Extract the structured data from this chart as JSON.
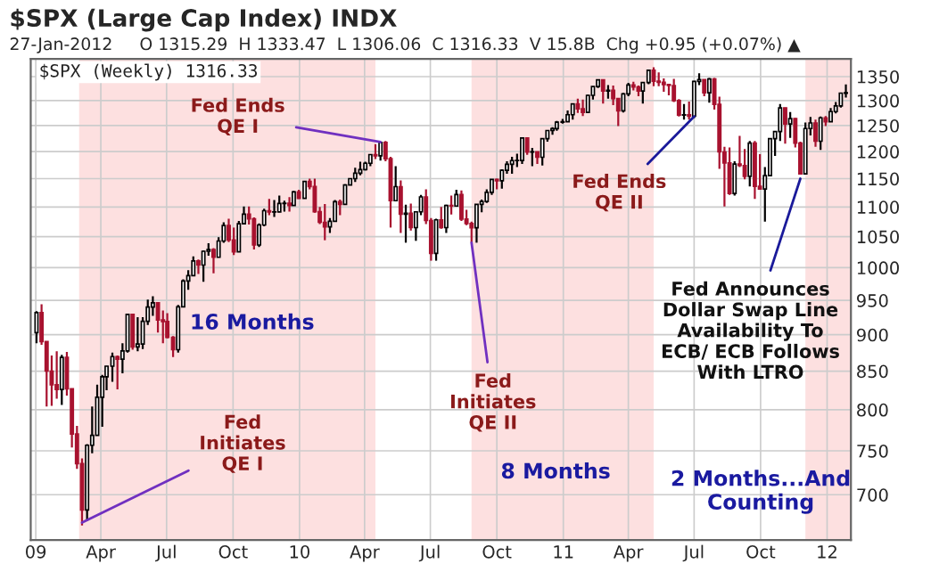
{
  "chart_data": {
    "type": "candlestick",
    "title": "$SPX (Large Cap Index) INDX",
    "subtitle": "27-Jan-2012     O 1315.29  H 1333.47  L 1306.06  C 1316.33  V 15.8B  Chg +0.95 (+0.07%) ▲",
    "series": [
      {
        "color": "#000000",
        "x": [
          "2009-01-02",
          "2009-02-06",
          "2009-03-13",
          "2009-03-20",
          "2009-03-27",
          "2009-04-03",
          "2009-04-09",
          "2009-04-17",
          "2009-05-01",
          "2009-05-08",
          "2009-05-22",
          "2009-05-29",
          "2009-06-05",
          "2009-06-12",
          "2009-07-17",
          "2009-07-24",
          "2009-07-31",
          "2009-08-07",
          "2009-08-21",
          "2009-08-28",
          "2009-09-11",
          "2009-09-18",
          "2009-10-09",
          "2009-10-16",
          "2009-11-06",
          "2009-11-13",
          "2009-11-27",
          "2009-12-04",
          "2009-12-11",
          "2009-12-24",
          "2010-01-08",
          "2010-02-12",
          "2010-02-19",
          "2010-03-05",
          "2010-03-12",
          "2010-03-19",
          "2010-03-26",
          "2010-04-02",
          "2010-04-09",
          "2010-04-23",
          "2010-05-14",
          "2010-05-28",
          "2010-06-11",
          "2010-06-18",
          "2010-07-09",
          "2010-07-23",
          "2010-08-06",
          "2010-09-03",
          "2010-09-10",
          "2010-09-17",
          "2010-09-24",
          "2010-10-08",
          "2010-10-15",
          "2010-10-22",
          "2010-10-29",
          "2010-11-05",
          "2010-11-19",
          "2010-12-03",
          "2010-12-10",
          "2010-12-17",
          "2010-12-23",
          "2010-12-31",
          "2011-01-07",
          "2011-01-14",
          "2011-02-04",
          "2011-02-11",
          "2011-02-18",
          "2011-03-04",
          "2011-03-25",
          "2011-04-01",
          "2011-04-21",
          "2011-04-29",
          "2011-06-17",
          "2011-07-01",
          "2011-07-08",
          "2011-07-22",
          "2011-08-26",
          "2011-09-16",
          "2011-10-07",
          "2011-10-14",
          "2011-10-21",
          "2011-10-28",
          "2011-11-11",
          "2011-12-02",
          "2011-12-09",
          "2011-12-23",
          "2012-01-06",
          "2012-01-13",
          "2012-01-20",
          "2012-01-27"
        ],
        "ohlc": [
          [
            903,
            934,
            888,
            931.8
          ],
          [
            825.9,
            872,
            806,
            868.6
          ],
          [
            683.4,
            758,
            672,
            756.6
          ],
          [
            756.6,
            804,
            747,
            768.5
          ],
          [
            768.5,
            832,
            768,
            815.9
          ],
          [
            815.9,
            845,
            779,
            842.5
          ],
          [
            842.5,
            857,
            825,
            856.6
          ],
          [
            856.6,
            875,
            836,
            869.6
          ],
          [
            866.2,
            888,
            847,
            877.5
          ],
          [
            877.5,
            930,
            875,
            929.2
          ],
          [
            882.9,
            925,
            877,
            887.0
          ],
          [
            887,
            925,
            880,
            919.1
          ],
          [
            919.1,
            951,
            914,
            940.1
          ],
          [
            940.1,
            956,
            927,
            946.2
          ],
          [
            879.1,
            943,
            875,
            940.4
          ],
          [
            940.4,
            982,
            940,
            979.3
          ],
          [
            979.3,
            996,
            966,
            987.5
          ],
          [
            987.5,
            1018,
            987,
            1010.5
          ],
          [
            1004.1,
            1027,
            978,
            1026.1
          ],
          [
            1026.1,
            1039,
            1019,
            1028.9
          ],
          [
            1016.4,
            1049,
            1016,
            1042.7
          ],
          [
            1042.7,
            1074,
            1040,
            1068.3
          ],
          [
            1025.2,
            1076,
            1025,
            1071.5
          ],
          [
            1071.5,
            1101,
            1071,
            1087.7
          ],
          [
            1036.2,
            1072,
            1033,
            1069.3
          ],
          [
            1069.3,
            1097,
            1067,
            1093.5
          ],
          [
            1091.4,
            1112,
            1083,
            1091.5
          ],
          [
            1091.5,
            1120,
            1091,
            1106
          ],
          [
            1106,
            1111,
            1092,
            1106.4
          ],
          [
            1102.5,
            1128,
            1102,
            1126.5
          ],
          [
            1115.1,
            1146,
            1115,
            1145
          ],
          [
            1066.2,
            1081,
            1056,
            1075.5
          ],
          [
            1075.5,
            1112,
            1075,
            1109.2
          ],
          [
            1104.5,
            1140,
            1104,
            1138.7
          ],
          [
            1138.7,
            1151,
            1138,
            1150
          ],
          [
            1150,
            1170,
            1144,
            1159.9
          ],
          [
            1159.9,
            1181,
            1156,
            1166.6
          ],
          [
            1166.6,
            1181,
            1165,
            1178.1
          ],
          [
            1178.1,
            1195,
            1173,
            1194.4
          ],
          [
            1192.1,
            1218,
            1183,
            1217.3
          ],
          [
            1110.9,
            1173,
            1110,
            1135.7
          ],
          [
            1087.7,
            1104,
            1040,
            1089.4
          ],
          [
            1064.9,
            1092,
            1043,
            1091.6
          ],
          [
            1091.6,
            1121,
            1086,
            1117.5
          ],
          [
            1022.6,
            1080,
            1011,
            1078
          ],
          [
            1064.9,
            1104,
            1056,
            1102.7
          ],
          [
            1101.6,
            1130,
            1101,
            1121.6
          ],
          [
            1064.6,
            1105,
            1040,
            1104.5
          ],
          [
            1104.5,
            1113,
            1091,
            1109.6
          ],
          [
            1109.6,
            1131,
            1107,
            1125.6
          ],
          [
            1125.6,
            1149,
            1121,
            1148.7
          ],
          [
            1146.2,
            1167,
            1132,
            1165.2
          ],
          [
            1165.2,
            1182,
            1159,
            1176.2
          ],
          [
            1176.2,
            1190,
            1159,
            1183.1
          ],
          [
            1183.1,
            1196,
            1171,
            1183.3
          ],
          [
            1183.3,
            1227,
            1177,
            1225.9
          ],
          [
            1199.2,
            1207,
            1173,
            1199.7
          ],
          [
            1189.4,
            1225,
            1174,
            1224.7
          ],
          [
            1224.7,
            1241,
            1219,
            1240.4
          ],
          [
            1240.4,
            1247,
            1232,
            1243.9
          ],
          [
            1243.9,
            1259,
            1240,
            1256.8
          ],
          [
            1256.8,
            1263,
            1254,
            1257.6
          ],
          [
            1257.6,
            1280,
            1257,
            1271.5
          ],
          [
            1271.5,
            1294,
            1262,
            1293.2
          ],
          [
            1276.3,
            1312,
            1276,
            1310.9
          ],
          [
            1310.9,
            1330,
            1302,
            1329.2
          ],
          [
            1329.2,
            1344,
            1326,
            1343
          ],
          [
            1319.9,
            1332,
            1304,
            1321.2
          ],
          [
            1279.2,
            1316,
            1276,
            1313.8
          ],
          [
            1313.8,
            1337,
            1309,
            1332.4
          ],
          [
            1319.7,
            1338,
            1294,
            1337.4
          ],
          [
            1337.4,
            1364,
            1334,
            1363.6
          ],
          [
            1271,
            1293,
            1262,
            1271.5
          ],
          [
            1268.5,
            1341,
            1265,
            1339.7
          ],
          [
            1339.7,
            1357,
            1332,
            1343.8
          ],
          [
            1316.1,
            1347,
            1296,
            1345
          ],
          [
            1123.5,
            1182,
            1120,
            1176.8
          ],
          [
            1154.2,
            1220,
            1136,
            1216
          ],
          [
            1131.4,
            1171,
            1075,
            1155.5
          ],
          [
            1155.5,
            1225,
            1155,
            1224.6
          ],
          [
            1224.6,
            1239,
            1192,
            1238.3
          ],
          [
            1238.3,
            1293,
            1220,
            1285.1
          ],
          [
            1253.2,
            1277,
            1226,
            1263.9
          ],
          [
            1158.7,
            1256,
            1158,
            1244.3
          ],
          [
            1244.3,
            1267,
            1231,
            1255.2
          ],
          [
            1219.7,
            1268,
            1203,
            1265.3
          ],
          [
            1257.6,
            1285,
            1257,
            1277.8
          ],
          [
            1277.8,
            1297,
            1274,
            1289.1
          ],
          [
            1289.1,
            1316,
            1286,
            1315.4
          ],
          [
            1315.29,
            1333.47,
            1306.06,
            1316.33
          ]
        ]
      },
      {
        "color": "#a8122f",
        "x": [
          "2009-01-09",
          "2009-01-16",
          "2009-01-23",
          "2009-01-30",
          "2009-02-13",
          "2009-02-20",
          "2009-02-27",
          "2009-03-06",
          "2009-04-24",
          "2009-05-15",
          "2009-06-19",
          "2009-06-26",
          "2009-07-02",
          "2009-07-10",
          "2009-08-14",
          "2009-09-04",
          "2009-09-25",
          "2009-10-02",
          "2009-10-23",
          "2009-10-30",
          "2009-11-20",
          "2009-12-18",
          "2009-12-31",
          "2010-01-15",
          "2010-01-22",
          "2010-01-29",
          "2010-02-05",
          "2010-02-26",
          "2010-04-16",
          "2010-04-30",
          "2010-05-07",
          "2010-05-21",
          "2010-06-04",
          "2010-06-25",
          "2010-07-02",
          "2010-07-16",
          "2010-07-30",
          "2010-08-13",
          "2010-08-20",
          "2010-08-27",
          "2010-10-01",
          "2010-11-12",
          "2010-11-26",
          "2011-01-21",
          "2011-01-28",
          "2011-02-25",
          "2011-03-11",
          "2011-03-18",
          "2011-04-08",
          "2011-04-15",
          "2011-05-06",
          "2011-05-13",
          "2011-05-20",
          "2011-05-27",
          "2011-06-03",
          "2011-06-10",
          "2011-06-24",
          "2011-07-15",
          "2011-07-29",
          "2011-08-05",
          "2011-08-12",
          "2011-08-19",
          "2011-09-02",
          "2011-09-09",
          "2011-09-23",
          "2011-09-30",
          "2011-11-04",
          "2011-11-18",
          "2011-11-25",
          "2011-12-16",
          "2011-12-30"
        ],
        "ohlc": [
          [
            931.8,
            944,
            886,
            890.4
          ],
          [
            890.4,
            891,
            804,
            850.1
          ],
          [
            850.1,
            871,
            805,
            831.95
          ],
          [
            832,
            877,
            814,
            825.9
          ],
          [
            868.6,
            876,
            818,
            826.8
          ],
          [
            826.8,
            827,
            754,
            770.05
          ],
          [
            770,
            780,
            729,
            735.1
          ],
          [
            735.1,
            741,
            667,
            683.4
          ],
          [
            869.6,
            871,
            826,
            866.2
          ],
          [
            929.2,
            930,
            879,
            882.9
          ],
          [
            946.2,
            947,
            903,
            921.2
          ],
          [
            921.2,
            935,
            888,
            918.9
          ],
          [
            918.9,
            931,
            895,
            896.4
          ],
          [
            896.4,
            898,
            869,
            879.1
          ],
          [
            1010.5,
            1013,
            990,
            1004.1
          ],
          [
            1028.9,
            1031,
            991,
            1016.4
          ],
          [
            1068.3,
            1080,
            1041,
            1044.4
          ],
          [
            1044.4,
            1065,
            1020,
            1025.2
          ],
          [
            1087.7,
            1101,
            1070,
            1079.6
          ],
          [
            1079.6,
            1082,
            1029,
            1036.2
          ],
          [
            1093.5,
            1114,
            1086,
            1091.4
          ],
          [
            1106.4,
            1117,
            1092,
            1102.5
          ],
          [
            1126.5,
            1130,
            1114,
            1115.1
          ],
          [
            1145,
            1150,
            1131,
            1136
          ],
          [
            1136,
            1150,
            1090,
            1091.8
          ],
          [
            1091.8,
            1100,
            1071,
            1073.9
          ],
          [
            1073.9,
            1105,
            1044,
            1066.2
          ],
          [
            1109.2,
            1113,
            1086,
            1104.5
          ],
          [
            1194.4,
            1214,
            1186,
            1192.1
          ],
          [
            1217.3,
            1220,
            1182,
            1186.7
          ],
          [
            1186.7,
            1190,
            1065,
            1110.9
          ],
          [
            1135.7,
            1147,
            1056,
            1087.7
          ],
          [
            1089.4,
            1106,
            1060,
            1064.9
          ],
          [
            1117.5,
            1131,
            1071,
            1076.8
          ],
          [
            1076.8,
            1081,
            1011,
            1022.6
          ],
          [
            1078,
            1100,
            1063,
            1064.9
          ],
          [
            1102.7,
            1120,
            1087,
            1101.6
          ],
          [
            1121.6,
            1129,
            1076,
            1079.3
          ],
          [
            1079.3,
            1095,
            1069,
            1071.7
          ],
          [
            1071.7,
            1075,
            1040,
            1064.6
          ],
          [
            1148.7,
            1150,
            1131,
            1146.2
          ],
          [
            1225.9,
            1227,
            1194,
            1199.2
          ],
          [
            1199.7,
            1200,
            1177,
            1189.4
          ],
          [
            1293.2,
            1304,
            1275,
            1283.4
          ],
          [
            1283.4,
            1302,
            1269,
            1276.3
          ],
          [
            1343,
            1344,
            1294,
            1319.9
          ],
          [
            1321.2,
            1331,
            1291,
            1304.3
          ],
          [
            1304.3,
            1305,
            1249,
            1279.2
          ],
          [
            1332.4,
            1339,
            1321,
            1328.2
          ],
          [
            1328.2,
            1331,
            1309,
            1319.7
          ],
          [
            1363.6,
            1370,
            1330,
            1340.2
          ],
          [
            1340.2,
            1359,
            1330,
            1337.8
          ],
          [
            1337.8,
            1346,
            1318,
            1333.3
          ],
          [
            1333.3,
            1334,
            1311,
            1331.1
          ],
          [
            1331.1,
            1345,
            1297,
            1300.2
          ],
          [
            1300.2,
            1303,
            1268,
            1271
          ],
          [
            1271.5,
            1298,
            1262,
            1268.5
          ],
          [
            1343.8,
            1344,
            1309,
            1316.1
          ],
          [
            1345,
            1347,
            1282,
            1292.3
          ],
          [
            1292.3,
            1308,
            1168,
            1199.4
          ],
          [
            1199.4,
            1209,
            1101,
            1178.8
          ],
          [
            1178.8,
            1208,
            1121,
            1123.5
          ],
          [
            1176.8,
            1230,
            1171,
            1174
          ],
          [
            1174,
            1205,
            1149,
            1154.2
          ],
          [
            1216,
            1220,
            1114,
            1136.4
          ],
          [
            1136.4,
            1195,
            1130,
            1131.4
          ],
          [
            1285.1,
            1286,
            1215,
            1253.2
          ],
          [
            1263.9,
            1265,
            1208,
            1216
          ],
          [
            1216,
            1219,
            1158,
            1158.7
          ],
          [
            1255.2,
            1262,
            1209,
            1219.7
          ],
          [
            1265.3,
            1269,
            1249,
            1257.6
          ]
        ]
      }
    ],
    "xlim": [
      "2008-12-25",
      "2012-02-03"
    ],
    "xticks": [
      {
        "value": "2009-01-01",
        "label": "09"
      },
      {
        "value": "2009-04-01",
        "label": "Apr"
      },
      {
        "value": "2009-07-01",
        "label": "Jul"
      },
      {
        "value": "2009-10-01",
        "label": "Oct"
      },
      {
        "value": "2010-01-01",
        "label": "10"
      },
      {
        "value": "2010-04-01",
        "label": "Apr"
      },
      {
        "value": "2010-07-01",
        "label": "Jul"
      },
      {
        "value": "2010-10-01",
        "label": "Oct"
      },
      {
        "value": "2011-01-01",
        "label": "11"
      },
      {
        "value": "2011-04-01",
        "label": "Apr"
      },
      {
        "value": "2011-07-01",
        "label": "Jul"
      },
      {
        "value": "2011-10-01",
        "label": "Oct"
      },
      {
        "value": "2012-01-01",
        "label": "12"
      }
    ],
    "log": "y",
    "ylim": [
      652,
      1388
    ],
    "yticks": [
      700,
      750,
      800,
      850,
      900,
      950,
      1000,
      1050,
      1100,
      1150,
      1200,
      1250,
      1300,
      1350
    ],
    "grid": true,
    "bands": [
      {
        "axis": "x",
        "from": "2009-03-02",
        "to": "2010-04-16",
        "color": "#fde0e0"
      },
      {
        "axis": "x",
        "from": "2010-08-27",
        "to": "2011-05-06",
        "color": "#fde0e0"
      },
      {
        "axis": "x",
        "from": "2011-12-02",
        "to": "2012-02-03",
        "color": "#fde0e0"
      }
    ],
    "annotations": [
      "$SPX (Weekly) 1316.33",
      {
        "text": "Fed Ends\nQE I",
        "x": "2010-04-23",
        "y": 1218
      },
      {
        "text": "Fed\nInitiates\nQE I",
        "x": "2009-03-06",
        "y": 670
      },
      {
        "text": "Fed\nInitiates\nQE II",
        "x": "2010-08-27",
        "y": 1040
      },
      {
        "text": "Fed Ends\nQE II",
        "x": "2011-07-01",
        "y": 1268
      },
      {
        "text": "Fed Announces\nDollar Swap Line\nAvailability To\nECB/ ECB Follows\nWith LTRO",
        "x": "2011-11-25",
        "y": 1150
      },
      "16 Months",
      "8 Months",
      "2 Months...And\nCounting"
    ]
  }
}
